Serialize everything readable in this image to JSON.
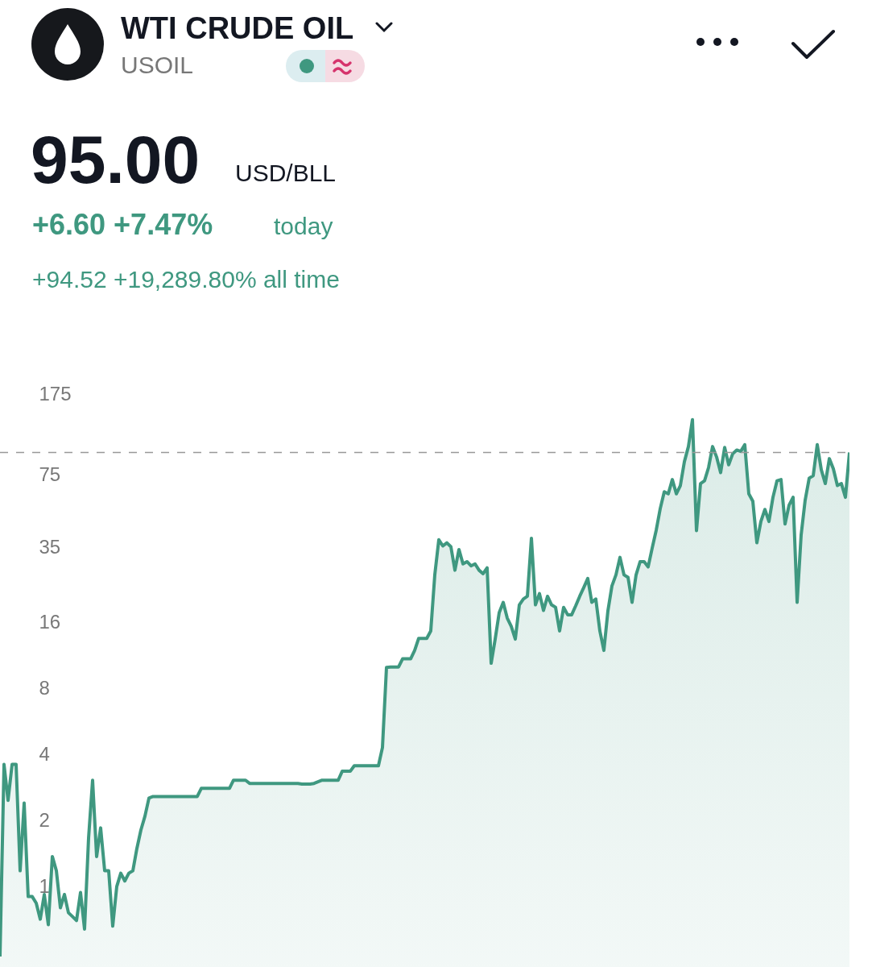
{
  "chart_data": {
    "type": "area",
    "title": "WTI CRUDE OIL",
    "subtitle": "USOIL",
    "annotations": [
      "95.00",
      "USD/BLL",
      "+6.60 +7.47%",
      "today",
      "+94.52 +19,289.80% all time"
    ],
    "categories": [
      null,
      null,
      null,
      null,
      null,
      null,
      null,
      null,
      null,
      null,
      null,
      null,
      null,
      null,
      null,
      null,
      null,
      null,
      null,
      null,
      null,
      null,
      null,
      null,
      null,
      null,
      null,
      null,
      null,
      null,
      null,
      null,
      null,
      null,
      null,
      null,
      null,
      null,
      null,
      null,
      null,
      null,
      null,
      null,
      null,
      null,
      null,
      null,
      null,
      null,
      null,
      null,
      null,
      null,
      null,
      null,
      null,
      null,
      null,
      null,
      null,
      null,
      null,
      null,
      null,
      null,
      null,
      null,
      null,
      null,
      null,
      null,
      null,
      null,
      null,
      null,
      null,
      null,
      null,
      null,
      null,
      null,
      null,
      null,
      null,
      null,
      null,
      null,
      null,
      null,
      null,
      null,
      null,
      null,
      null,
      null,
      null,
      null,
      null,
      null,
      null,
      null,
      null,
      null,
      null,
      null,
      null,
      null,
      null,
      null,
      null,
      null,
      null,
      null,
      null,
      null,
      null,
      null,
      null,
      null,
      null,
      null,
      null,
      null,
      null,
      null,
      null,
      null,
      null,
      null,
      null,
      null,
      null,
      null,
      null,
      null,
      null,
      null,
      null,
      null,
      null,
      null,
      null,
      null,
      null,
      null,
      null,
      null,
      null,
      null,
      null,
      null,
      null,
      null,
      null,
      null,
      null,
      null,
      null,
      null,
      null,
      null,
      null,
      null,
      null,
      null,
      null,
      null,
      null,
      null,
      null,
      null,
      null,
      null,
      null,
      null,
      null,
      null,
      null,
      null,
      null,
      null,
      null,
      null,
      null,
      null,
      null,
      null,
      null,
      null,
      null,
      null,
      null,
      null,
      null,
      null,
      null,
      null,
      null,
      null,
      null,
      null,
      null,
      null,
      null,
      null,
      null,
      null,
      null,
      null,
      null,
      null
    ],
    "series": [
      {
        "color": "#3f9880",
        "values": [
          0.48,
          3.6,
          2.47,
          3.6,
          3.6,
          1.18,
          2.4,
          0.9,
          0.9,
          0.84,
          0.71,
          0.92,
          0.67,
          1.37,
          1.18,
          0.8,
          0.92,
          0.76,
          0.73,
          0.7,
          0.94,
          0.64,
          1.66,
          3.05,
          1.37,
          1.85,
          1.18,
          1.18,
          0.66,
          1.0,
          1.15,
          1.06,
          1.15,
          1.18,
          1.49,
          1.81,
          2.09,
          2.53,
          2.57,
          2.57,
          2.57,
          2.57,
          2.57,
          2.57,
          2.57,
          2.57,
          2.57,
          2.57,
          2.57,
          2.57,
          2.8,
          2.8,
          2.8,
          2.8,
          2.8,
          2.8,
          2.8,
          2.8,
          3.05,
          3.05,
          3.05,
          3.05,
          2.95,
          2.95,
          2.95,
          2.95,
          2.95,
          2.95,
          2.95,
          2.95,
          2.95,
          2.95,
          2.95,
          2.95,
          2.95,
          2.93,
          2.93,
          2.93,
          2.95,
          3.0,
          3.05,
          3.05,
          3.05,
          3.05,
          3.05,
          3.35,
          3.35,
          3.35,
          3.55,
          3.55,
          3.55,
          3.55,
          3.55,
          3.55,
          3.55,
          4.3,
          9.95,
          10.0,
          10.0,
          10.0,
          10.9,
          10.9,
          10.9,
          11.9,
          13.5,
          13.5,
          13.5,
          14.6,
          26.3,
          38,
          35.6,
          36.8,
          35.3,
          27.6,
          34.3,
          29.5,
          30.2,
          28.9,
          29.5,
          27.6,
          26.6,
          28.3,
          10.4,
          13.4,
          17.7,
          19.7,
          16.7,
          15.3,
          13.4,
          19.2,
          20.4,
          21,
          38.6,
          19.2,
          21.6,
          18.1,
          21,
          19.2,
          18.7,
          14.6,
          18.7,
          17.3,
          17.3,
          19,
          21,
          23,
          25.3,
          19.7,
          20.4,
          14.6,
          11.9,
          18,
          23.4,
          26.3,
          31.6,
          26.3,
          25.6,
          19.7,
          26.3,
          30.2,
          30.2,
          28.6,
          34.8,
          42,
          52.7,
          62.9,
          61.5,
          71.4,
          61.5,
          67.1,
          86.2,
          101,
          134,
          41.8,
          68.5,
          70.5,
          81,
          101,
          90.5,
          76.8,
          100,
          83.4,
          93.6,
          97.4,
          96,
          103,
          61.5,
          56.9,
          36.8,
          46,
          52.2,
          46,
          59.3,
          70.5,
          71.4,
          44.8,
          54.6,
          59.3,
          19.7,
          40,
          57.6,
          72.5,
          74.4,
          103,
          79.2,
          68.5,
          89,
          80,
          67.1,
          68.5,
          59.3,
          95
        ]
      }
    ],
    "log": true,
    "ylim": [
      0.43,
      189
    ],
    "yticks": [
      1,
      2,
      4,
      8,
      16,
      35,
      75,
      175
    ],
    "ref_lines": [
      {
        "axis": "y",
        "value": 95,
        "color": "#999999",
        "line_style": "dashed"
      }
    ],
    "grid": false
  }
}
